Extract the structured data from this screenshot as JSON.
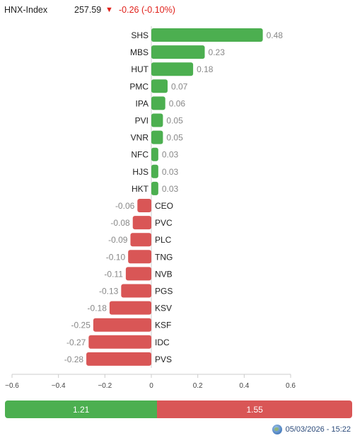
{
  "index": {
    "name": "HNX-Index",
    "value": "257.59",
    "arrow": "▼",
    "change": "-0.26 (-0.10%)",
    "change_color": "#e0201a"
  },
  "chart_data": {
    "type": "bar",
    "orientation": "horizontal",
    "categories": [
      "SHS",
      "MBS",
      "HUT",
      "PMC",
      "IPA",
      "PVI",
      "VNR",
      "NFC",
      "HJS",
      "HKT",
      "CEO",
      "PVC",
      "PLC",
      "TNG",
      "NVB",
      "PGS",
      "KSV",
      "KSF",
      "IDC",
      "PVS"
    ],
    "values": [
      0.48,
      0.23,
      0.18,
      0.07,
      0.06,
      0.05,
      0.05,
      0.03,
      0.03,
      0.03,
      -0.06,
      -0.08,
      -0.09,
      -0.1,
      -0.11,
      -0.13,
      -0.18,
      -0.25,
      -0.27,
      -0.28
    ],
    "value_labels": [
      "0.48",
      "0.23",
      "0.18",
      "0.07",
      "0.06",
      "0.05",
      "0.05",
      "0.03",
      "0.03",
      "0.03",
      "-0.06",
      "-0.08",
      "-0.09",
      "-0.10",
      "-0.11",
      "-0.13",
      "-0.18",
      "-0.25",
      "-0.27",
      "-0.28"
    ],
    "xlim": [
      -0.6,
      0.6
    ],
    "xticks": [
      "−0.6",
      "−0.4",
      "−0.2",
      "0",
      "0.2",
      "0.4",
      "0.6"
    ],
    "positive_color": "#4caf50",
    "negative_color": "#d95656"
  },
  "summary": {
    "up_value": "1.21",
    "down_value": "1.55",
    "up_fraction": 0.4384,
    "up_color": "#4caf50",
    "down_color": "#d95656"
  },
  "footer": {
    "timestamp": "05/03/2026 - 15:22",
    "icon": "globe-icon"
  }
}
